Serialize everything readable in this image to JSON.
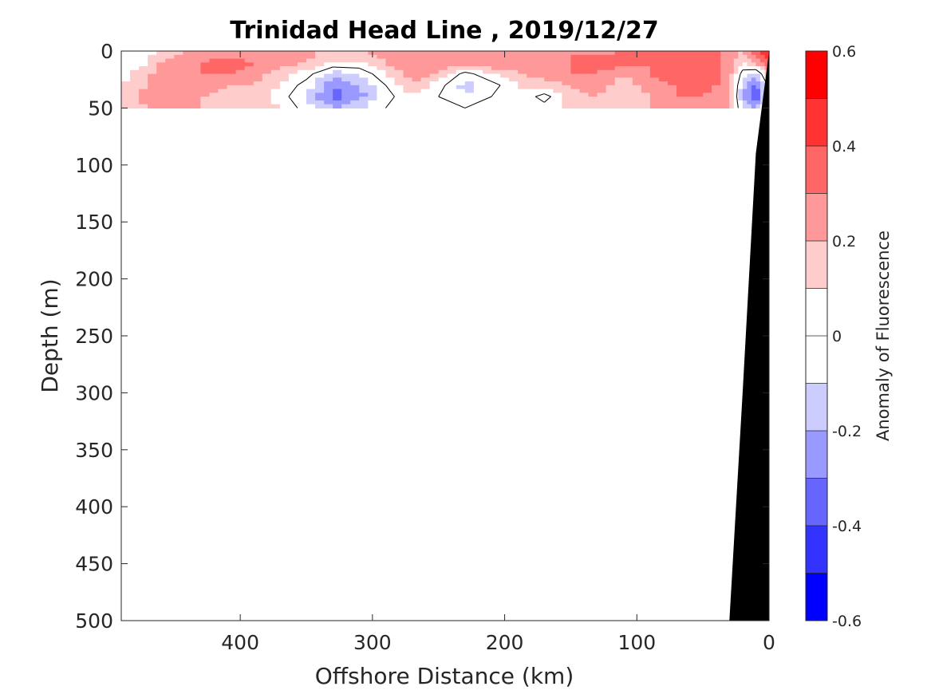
{
  "chart_data": {
    "type": "heatmap",
    "title": "Trinidad Head Line , 2019/12/27",
    "xlabel": "Offshore Distance (km)",
    "ylabel": "Depth (m)",
    "xlim": [
      490,
      0
    ],
    "ylim": [
      0,
      500
    ],
    "x_reversed": true,
    "y_reversed": true,
    "xticks": [
      400,
      300,
      200,
      100,
      0
    ],
    "yticks": [
      0,
      50,
      100,
      150,
      200,
      250,
      300,
      350,
      400,
      450,
      500
    ],
    "colorbar": {
      "label": "Anomaly of Fluorescence",
      "range": [
        -0.6,
        0.6
      ],
      "levels": [
        -0.6,
        -0.5,
        -0.4,
        -0.3,
        -0.2,
        -0.1,
        0,
        0.1,
        0.2,
        0.3,
        0.4,
        0.5,
        0.6
      ],
      "colors": [
        "#0000ff",
        "#3333ff",
        "#6666ff",
        "#9999ff",
        "#ccccff",
        "#ffffff",
        "#ffffff",
        "#ffcccc",
        "#ff9999",
        "#ff6666",
        "#ff3333",
        "#ff0000"
      ],
      "ticks": [
        0.6,
        0.4,
        0.2,
        0,
        -0.2,
        -0.4,
        -0.6
      ]
    },
    "depth_range_sampled": [
      0,
      50
    ],
    "x_sample": [
      490,
      470,
      450,
      430,
      410,
      390,
      370,
      350,
      330,
      310,
      290,
      270,
      250,
      230,
      210,
      190,
      170,
      150,
      130,
      110,
      90,
      70,
      50,
      30,
      20,
      10,
      0
    ],
    "depth_sample": [
      0,
      10,
      20,
      30,
      40,
      50
    ],
    "anomaly_grid": [
      [
        0.0,
        0.05,
        0.15,
        0.25,
        0.25,
        0.2,
        0.3,
        0.25,
        0.1,
        0.2,
        0.25,
        0.25,
        0.2,
        0.3,
        0.25,
        0.25,
        0.25,
        0.3,
        0.25,
        0.3,
        0.3,
        0.35,
        0.35,
        0.25,
        0.2,
        0.35,
        0.55
      ],
      [
        0.0,
        0.1,
        0.3,
        0.3,
        0.35,
        0.3,
        0.25,
        0.2,
        0.1,
        0.1,
        0.2,
        0.3,
        0.25,
        0.3,
        0.3,
        0.25,
        0.3,
        0.3,
        0.35,
        0.35,
        0.3,
        0.35,
        0.35,
        0.25,
        0.1,
        0.25,
        0.4
      ],
      [
        0.05,
        0.2,
        0.25,
        0.3,
        0.3,
        0.25,
        0.15,
        0.05,
        -0.15,
        -0.1,
        0.1,
        0.25,
        0.2,
        -0.05,
        0.1,
        0.2,
        0.25,
        0.3,
        0.3,
        0.2,
        0.3,
        0.35,
        0.35,
        0.25,
        -0.05,
        -0.15,
        0.2
      ],
      [
        0.1,
        0.2,
        0.25,
        0.25,
        0.2,
        0.2,
        0.1,
        -0.05,
        -0.3,
        -0.2,
        0.0,
        0.2,
        0.05,
        -0.15,
        -0.05,
        0.1,
        0.15,
        0.2,
        0.25,
        0.15,
        0.25,
        0.3,
        0.35,
        0.25,
        -0.15,
        -0.35,
        0.05
      ],
      [
        0.15,
        0.25,
        0.25,
        0.2,
        0.15,
        0.15,
        0.05,
        -0.1,
        -0.35,
        -0.25,
        -0.05,
        0.1,
        0.0,
        -0.1,
        0.0,
        0.1,
        -0.05,
        0.15,
        0.2,
        0.1,
        0.2,
        0.3,
        0.3,
        0.25,
        -0.2,
        -0.4,
        0.0
      ],
      [
        0.15,
        0.2,
        0.2,
        0.2,
        0.15,
        0.15,
        0.1,
        -0.05,
        -0.2,
        -0.1,
        0.0,
        0.1,
        0.05,
        0.0,
        0.05,
        0.1,
        0.05,
        0.15,
        0.15,
        0.1,
        0.2,
        0.25,
        0.25,
        0.2,
        -0.1,
        -0.2,
        0.05
      ]
    ],
    "bathymetry": {
      "offshore_km": [
        0,
        10,
        20,
        30,
        40
      ],
      "depth_m": [
        0,
        90,
        300,
        500,
        500
      ]
    }
  }
}
